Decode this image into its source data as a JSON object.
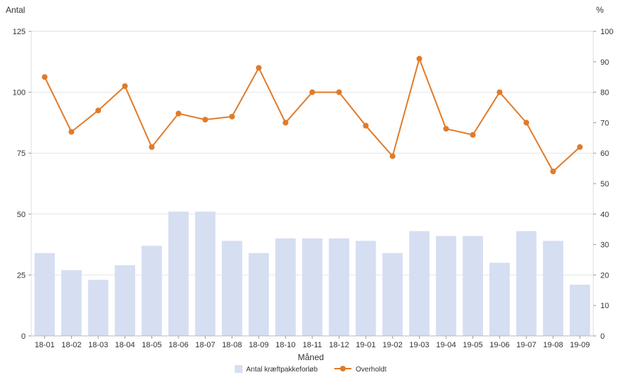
{
  "chart_data": {
    "type": "bar+line",
    "categories": [
      "18-01",
      "18-02",
      "18-03",
      "18-04",
      "18-05",
      "18-06",
      "18-07",
      "18-08",
      "18-09",
      "18-10",
      "18-11",
      "18-12",
      "19-01",
      "19-02",
      "19-03",
      "19-04",
      "19-05",
      "19-06",
      "19-07",
      "19-08",
      "19-09"
    ],
    "series": [
      {
        "name": "Antal kræftpakkeforløb",
        "type": "bar",
        "axis": "left",
        "color": "#d6def2",
        "values": [
          34,
          27,
          23,
          29,
          37,
          51,
          51,
          39,
          34,
          40,
          40,
          40,
          39,
          34,
          43,
          41,
          41,
          30,
          43,
          39,
          21
        ]
      },
      {
        "name": "Overholdt",
        "type": "line",
        "axis": "right",
        "color": "#e07b2a",
        "values": [
          85,
          67,
          74,
          82,
          62,
          73,
          71,
          72,
          88,
          70,
          80,
          80,
          69,
          59,
          91,
          68,
          66,
          80,
          70,
          54,
          62
        ]
      }
    ],
    "ylabel_left": "Antal",
    "ylabel_right": "%",
    "xlabel": "Måned",
    "ylim_left": [
      0,
      125
    ],
    "yticks_left": [
      "0",
      "25",
      "50",
      "75",
      "100",
      "125"
    ],
    "ylim_right": [
      0,
      100
    ],
    "yticks_right": [
      "0",
      "10",
      "20",
      "30",
      "40",
      "50",
      "60",
      "70",
      "80",
      "90",
      "100"
    ],
    "grid": true,
    "legend_position": "bottom"
  }
}
